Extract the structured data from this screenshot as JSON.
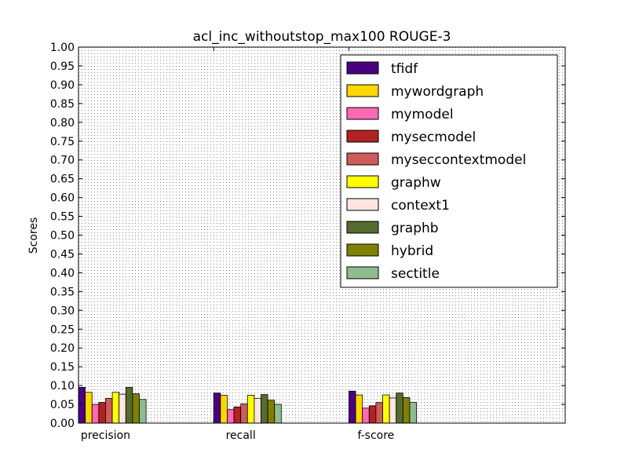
{
  "chart_data": {
    "type": "bar",
    "title": "acl_inc_withoutstop_max100 ROUGE-3",
    "xlabel": "",
    "ylabel": "Scores",
    "categories": [
      "precision",
      "recall",
      "f-score"
    ],
    "ylim": [
      0,
      1.0
    ],
    "xlim": [
      0,
      3.6
    ],
    "yticks": [
      "0.00",
      "0.05",
      "0.10",
      "0.15",
      "0.20",
      "0.25",
      "0.30",
      "0.35",
      "0.40",
      "0.45",
      "0.50",
      "0.55",
      "0.60",
      "0.65",
      "0.70",
      "0.75",
      "0.80",
      "0.85",
      "0.90",
      "0.95",
      "1.00"
    ],
    "grid": true,
    "legend_position": "top-right",
    "series": [
      {
        "name": "tfidf",
        "color": "#4b0082",
        "values": [
          0.095,
          0.08,
          0.085
        ]
      },
      {
        "name": "mywordgraph",
        "color": "#ffd700",
        "values": [
          0.082,
          0.074,
          0.075
        ]
      },
      {
        "name": "mymodel",
        "color": "#ff69b4",
        "values": [
          0.05,
          0.036,
          0.04
        ]
      },
      {
        "name": "mysecmodel",
        "color": "#b22222",
        "values": [
          0.055,
          0.043,
          0.046
        ]
      },
      {
        "name": "myseccontextmodel",
        "color": "#cd5c5c",
        "values": [
          0.066,
          0.051,
          0.055
        ]
      },
      {
        "name": "graphw",
        "color": "#ffff00",
        "values": [
          0.082,
          0.074,
          0.075
        ]
      },
      {
        "name": "context1",
        "color": "#ffe4e1",
        "values": [
          0.077,
          0.066,
          0.067
        ]
      },
      {
        "name": "graphb",
        "color": "#556b2f",
        "values": [
          0.095,
          0.076,
          0.08
        ]
      },
      {
        "name": "hybrid",
        "color": "#808000",
        "values": [
          0.078,
          0.061,
          0.068
        ]
      },
      {
        "name": "sectitle",
        "color": "#8fbc8f",
        "values": [
          0.063,
          0.05,
          0.055
        ]
      }
    ]
  }
}
